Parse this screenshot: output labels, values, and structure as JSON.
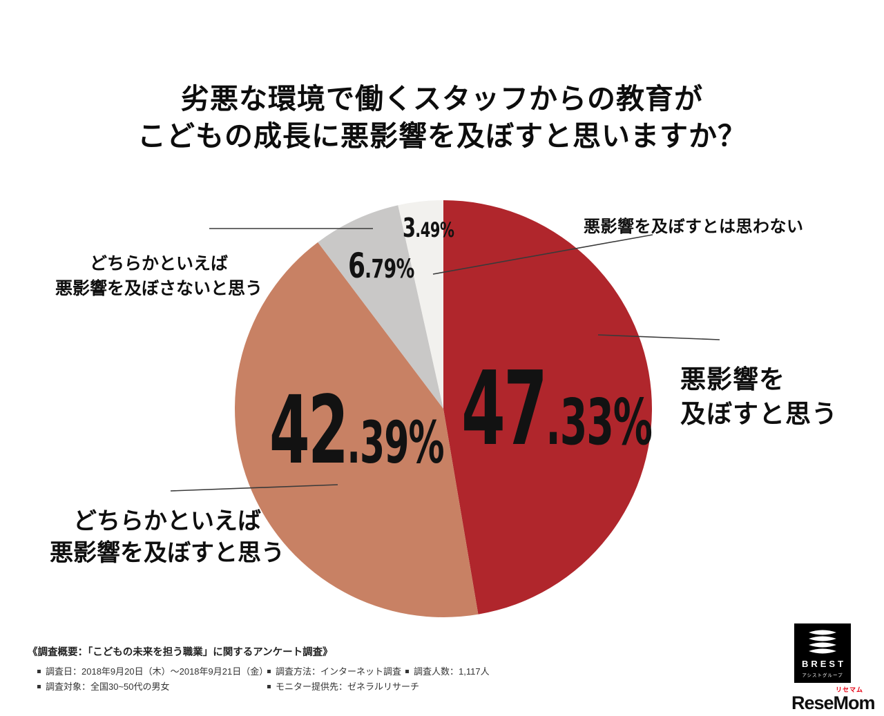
{
  "title": {
    "line1": "劣悪な環境で働くスタッフからの教育が",
    "line2": "こどもの成長に悪影響を及ぼすと思いますか？"
  },
  "chart_data": {
    "type": "pie",
    "title": "劣悪な環境で働くスタッフからの教育がこどもの成長に悪影響を及ぼすと思いますか？",
    "start_angle_deg": 0,
    "direction": "clockwise",
    "legend_position": "labels-with-leader-lines",
    "slices": [
      {
        "label": "悪影響を及ぼすと思う",
        "value": 47.33,
        "display": "47.33%",
        "color": "#b0262c"
      },
      {
        "label": "どちらかといえば悪影響を及ぼすと思う",
        "value": 42.39,
        "display": "42.39%",
        "color": "#c88164"
      },
      {
        "label": "どちらかといえば悪影響を及ぼさないと思う",
        "value": 6.79,
        "display": "6.79%",
        "color": "#c9c8c7"
      },
      {
        "label": "悪影響を及ぼすとは思わない",
        "value": 3.49,
        "display": "3.49%",
        "color": "#f2f1ee"
      }
    ]
  },
  "callouts": {
    "no_effect": "悪影響を及ぼすとは思わない",
    "effect_line1": "悪影響を",
    "effect_line2": "及ぼすと思う",
    "rather_no_line1": "どちらかといえば",
    "rather_no_line2": "悪影響を及ぼさないと思う",
    "rather_yes_line1": "どちらかといえば",
    "rather_yes_line2": "悪影響を及ぼすと思う"
  },
  "footer": {
    "heading": "《調査概要：「こどもの未来を担う職業」に関するアンケート調査》",
    "items_row1": [
      "調査日：2018年9月20日（木）～2018年9月21日（金）",
      "調査方法：インターネット調査",
      "調査人数：1,117人"
    ],
    "items_row2": [
      "調査対象：全国30~50代の男女",
      "モニター提供先：ゼネラルリサーチ"
    ]
  },
  "logos": {
    "brest": {
      "name": "BREST",
      "sub": "アシストグループ"
    },
    "resemom": {
      "name": "ReseMom",
      "sub": "リセマム"
    }
  }
}
